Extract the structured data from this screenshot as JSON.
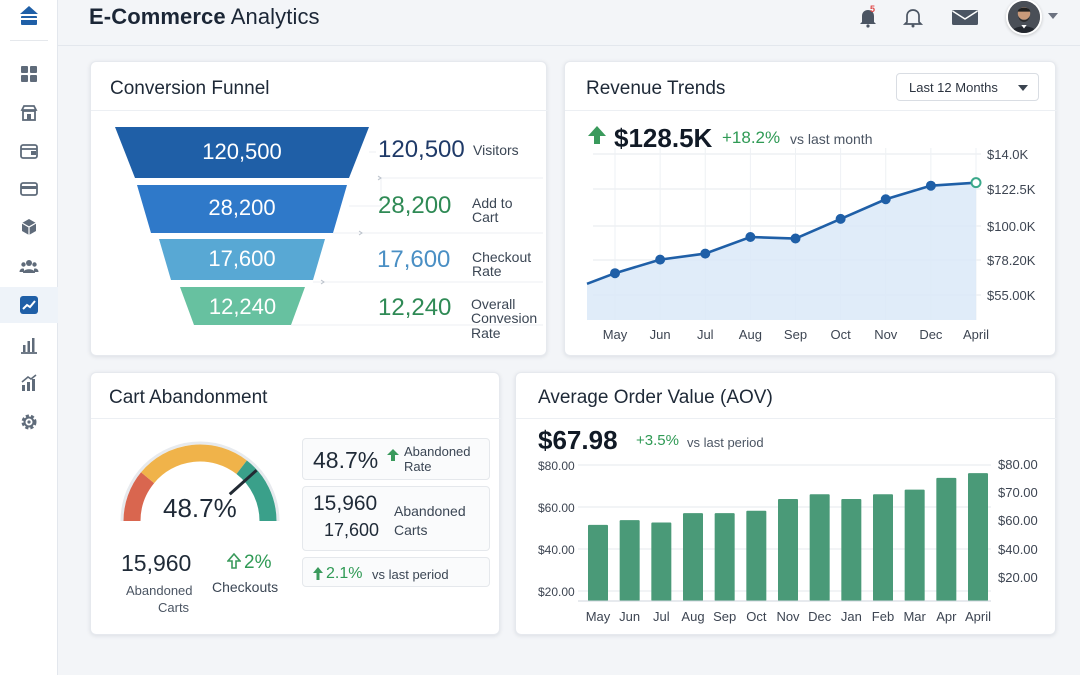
{
  "app": {
    "title_bold": "E-Commerce",
    "title_rest": " Analytics",
    "notification_count": "5"
  },
  "sidebar": {
    "items": [
      {
        "icon": "grid-icon"
      },
      {
        "icon": "store-icon"
      },
      {
        "icon": "wallet-icon"
      },
      {
        "icon": "card-icon"
      },
      {
        "icon": "box-icon"
      },
      {
        "icon": "users-icon"
      },
      {
        "icon": "trend-icon",
        "active": true
      },
      {
        "icon": "bar-chart-icon"
      },
      {
        "icon": "growth-chart-icon"
      },
      {
        "icon": "gear-icon"
      }
    ]
  },
  "funnel": {
    "title": "Conversion Funnel",
    "stages": [
      {
        "value": "120,500",
        "label_1": "Visitors",
        "label_2": "",
        "label_3": "",
        "color": "#1f5fa7"
      },
      {
        "value": "28,200",
        "label_1": "Add to",
        "label_2": "Cart",
        "label_3": "",
        "color": "#2f79c9"
      },
      {
        "value": "17,600",
        "label_1": "Checkout",
        "label_2": "Rate",
        "label_3": "",
        "color": "#58a8d4"
      },
      {
        "value": "12,240",
        "label_1": "Overall",
        "label_2": "Convesion",
        "label_3": "Rate",
        "color": "#67c1a0"
      }
    ]
  },
  "revenue": {
    "title": "Revenue Trends",
    "range": "Last 12 Months",
    "total": "$128.5K",
    "delta": "+18.2%",
    "vs": "vs last month",
    "y_ticks": [
      "$14.0K",
      "$122.5K",
      "$100.0K",
      "$78.20K",
      "$55.00K"
    ],
    "x_ticks": [
      "May",
      "Jun",
      "Jul",
      "Aug",
      "Sep",
      "Oct",
      "Nov",
      "Dec",
      "April"
    ]
  },
  "cart": {
    "title": "Cart Abandonment",
    "gauge_value": "48.7%",
    "gauge_level": 0.487,
    "left_value": "15,960",
    "left_label_1": "Abandoned",
    "left_label_2": "Carts",
    "checkouts_delta": "2%",
    "checkouts_label": "Checkouts",
    "box1_value": "48.7%",
    "box1_label_1": "Abandoned",
    "box1_label_2": "Rate",
    "box2_value_1": "15,960",
    "box2_value_2": "17,600",
    "box2_label_1": "Abandoned",
    "box2_label_2": "Carts",
    "box3_delta": "2.1%",
    "box3_vs": "vs last period"
  },
  "aov": {
    "title": "Average Order Value (AOV)",
    "value": "$67.98",
    "delta": "+3.5%",
    "vs": "vs last period",
    "y_left": [
      "$80.00",
      "$60.00",
      "$40.00",
      "$20.00"
    ],
    "y_right": [
      "$80.00",
      "$70.00",
      "$60.00",
      "$40.00",
      "$20.00"
    ]
  },
  "chart_data": [
    {
      "type": "line",
      "title": "Revenue Trends",
      "x": [
        "May",
        "Jun",
        "Jul",
        "Aug",
        "Sep",
        "Oct",
        "Nov",
        "Dec",
        "April"
      ],
      "values": [
        71,
        80,
        84,
        95,
        94,
        107,
        120,
        129,
        131
      ],
      "unit": "$K",
      "grid": true
    },
    {
      "type": "bar",
      "title": "Average Order Value (AOV)",
      "categories": [
        "May",
        "Jun",
        "Jul",
        "Aug",
        "Sep",
        "Oct",
        "Nov",
        "Dec",
        "Jan",
        "Feb",
        "Mar",
        "Apr",
        "April"
      ],
      "values": [
        49,
        51,
        50,
        54,
        54,
        55,
        60,
        62,
        60,
        62,
        64,
        69,
        71
      ],
      "ylim": [
        20,
        80
      ],
      "grid": true
    }
  ]
}
